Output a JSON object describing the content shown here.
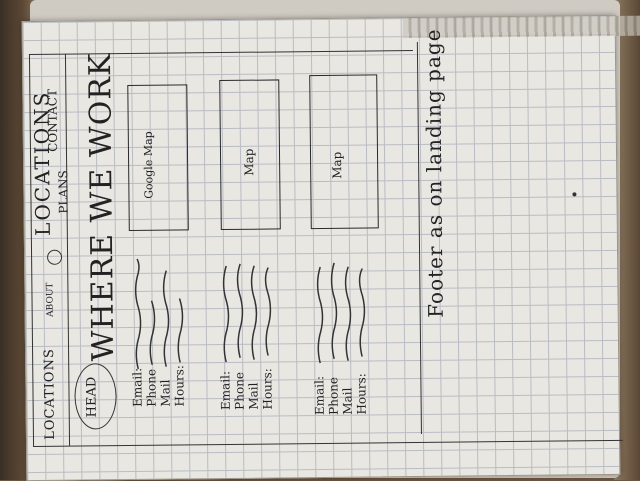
{
  "nav": {
    "logo": "HEAD",
    "locations": "LOCATIONS",
    "about": "ABOUT",
    "plans": "PLANS",
    "contact": "CONTACT",
    "active_tab": "LOCATIONS"
  },
  "header": {
    "title": "WHERE WE WORK"
  },
  "locations": [
    {
      "map_label": "Google Map",
      "fields": [
        "Email:",
        "Phone",
        "Mail",
        "Hours:"
      ]
    },
    {
      "map_label": "Map",
      "fields": [
        "Email:",
        "Phone",
        "Mail",
        "Hours:"
      ]
    },
    {
      "map_label": "Map",
      "fields": [
        "Email:",
        "Phone",
        "Mail",
        "Hours:"
      ]
    }
  ],
  "footer": {
    "note": "Footer as on landing page"
  }
}
